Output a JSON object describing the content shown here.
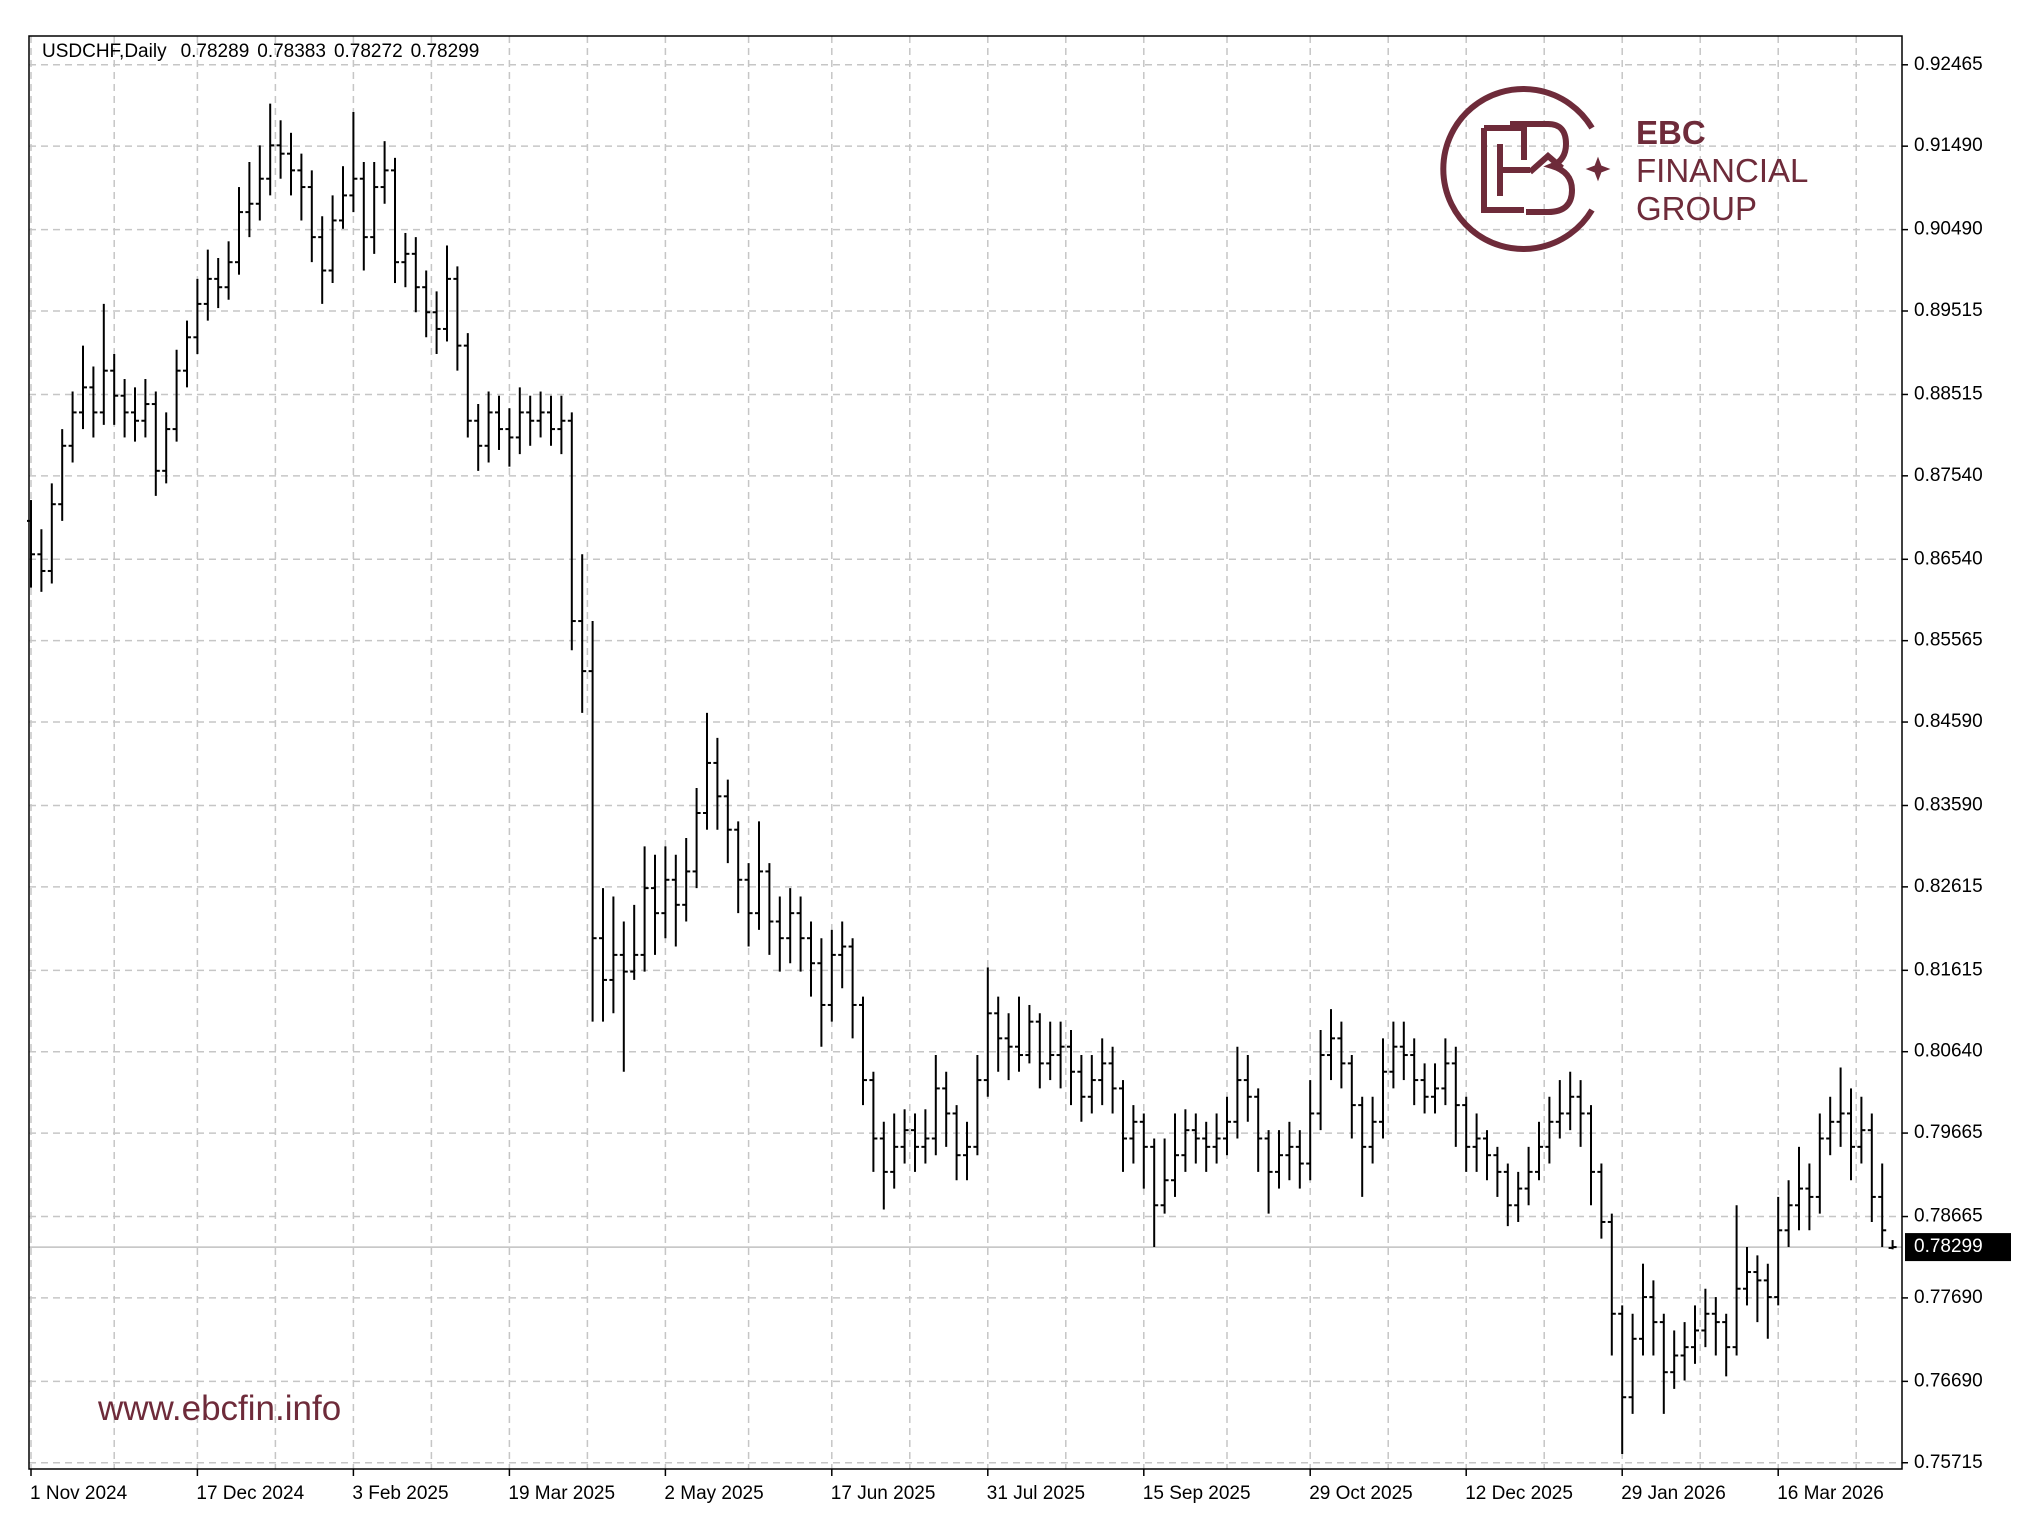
{
  "chart_data": {
    "type": "ohlc",
    "title": "USDCHF,Daily",
    "color": "#000000",
    "grid": true,
    "current_line_color": "#c0c0c0",
    "categories": [
      "1 Nov 2024",
      null,
      null,
      null,
      null,
      null,
      null,
      null,
      null,
      null,
      null,
      null,
      null,
      null,
      null,
      null,
      "17 Dec 2024",
      null,
      null,
      null,
      null,
      null,
      null,
      null,
      null,
      null,
      null,
      null,
      null,
      null,
      null,
      "3 Feb 2025",
      null,
      null,
      null,
      null,
      null,
      null,
      null,
      null,
      null,
      null,
      null,
      null,
      null,
      null,
      "19 Mar 2025",
      null,
      null,
      null,
      null,
      null,
      null,
      null,
      null,
      null,
      null,
      null,
      null,
      null,
      null,
      "2 May 2025",
      null,
      null,
      null,
      null,
      null,
      null,
      null,
      null,
      null,
      null,
      null,
      null,
      null,
      null,
      null,
      "17 Jun 2025",
      null,
      null,
      null,
      null,
      null,
      null,
      null,
      null,
      null,
      null,
      null,
      null,
      null,
      null,
      "31 Jul 2025",
      null,
      null,
      null,
      null,
      null,
      null,
      null,
      null,
      null,
      null,
      null,
      null,
      null,
      null,
      "15 Sep 2025",
      null,
      null,
      null,
      null,
      null,
      null,
      null,
      null,
      null,
      null,
      null,
      null,
      null,
      null,
      null,
      "29 Oct 2025",
      null,
      null,
      null,
      null,
      null,
      null,
      null,
      null,
      null,
      null,
      null,
      null,
      null,
      null,
      "12 Dec 2025",
      null,
      null,
      null,
      null,
      null,
      null,
      null,
      null,
      null,
      null,
      null,
      null,
      null,
      null,
      "29 Jan 2026",
      null,
      null,
      null,
      null,
      null,
      null,
      null,
      null,
      null,
      null,
      null,
      null,
      null,
      null,
      "16 Mar 2026",
      null,
      null,
      null,
      null,
      null,
      null,
      null,
      null,
      null,
      null,
      null
    ],
    "open": [
      0.87,
      0.866,
      0.864,
      0.872,
      0.879,
      0.883,
      0.886,
      0.883,
      0.888,
      0.885,
      0.883,
      0.882,
      0.884,
      0.876,
      0.881,
      0.888,
      0.892,
      0.896,
      0.899,
      0.898,
      0.901,
      0.907,
      0.908,
      0.911,
      0.915,
      0.914,
      0.912,
      0.91,
      0.904,
      0.9,
      0.906,
      0.909,
      0.911,
      0.904,
      0.91,
      0.912,
      0.901,
      0.902,
      0.898,
      0.895,
      0.893,
      0.899,
      0.891,
      0.882,
      0.879,
      0.883,
      0.881,
      0.88,
      0.883,
      0.882,
      0.883,
      0.881,
      0.882,
      0.858,
      0.852,
      0.82,
      0.815,
      0.818,
      0.816,
      0.818,
      0.826,
      0.823,
      0.827,
      0.824,
      0.828,
      0.835,
      0.841,
      0.837,
      0.833,
      0.827,
      0.823,
      0.828,
      0.822,
      0.82,
      0.823,
      0.82,
      0.817,
      0.812,
      0.818,
      0.819,
      0.812,
      0.803,
      0.796,
      0.792,
      0.795,
      0.797,
      0.795,
      0.796,
      0.802,
      0.799,
      0.794,
      0.795,
      0.803,
      0.811,
      0.808,
      0.807,
      0.806,
      0.81,
      0.805,
      0.806,
      0.807,
      0.804,
      0.801,
      0.803,
      0.805,
      0.802,
      0.796,
      0.798,
      0.795,
      0.788,
      0.791,
      0.794,
      0.797,
      0.796,
      0.795,
      0.796,
      0.798,
      0.803,
      0.801,
      0.796,
      0.792,
      0.794,
      0.795,
      0.793,
      0.799,
      0.806,
      0.808,
      0.805,
      0.8,
      0.795,
      0.798,
      0.804,
      0.807,
      0.806,
      0.803,
      0.801,
      0.802,
      0.805,
      0.8,
      0.795,
      0.796,
      0.794,
      0.792,
      0.788,
      0.79,
      0.792,
      0.795,
      0.798,
      0.799,
      0.801,
      0.799,
      0.792,
      0.786,
      0.775,
      0.765,
      0.772,
      0.777,
      0.774,
      0.768,
      0.77,
      0.771,
      0.773,
      0.775,
      0.774,
      0.771,
      0.778,
      0.78,
      0.779,
      0.777,
      0.785,
      0.788,
      0.79,
      0.789,
      0.796,
      0.798,
      0.799,
      0.795,
      0.797,
      0.789,
      0.78289
    ],
    "high": [
      0.8725,
      0.869,
      0.8745,
      0.881,
      0.8855,
      0.891,
      0.8885,
      0.896,
      0.89,
      0.887,
      0.886,
      0.887,
      0.8855,
      0.883,
      0.8905,
      0.894,
      0.899,
      0.9025,
      0.9015,
      0.9035,
      0.91,
      0.913,
      0.915,
      0.92,
      0.918,
      0.9165,
      0.914,
      0.912,
      0.9065,
      0.909,
      0.9125,
      0.919,
      0.913,
      0.913,
      0.9155,
      0.9135,
      0.9045,
      0.904,
      0.9,
      0.8975,
      0.903,
      0.9005,
      0.8925,
      0.884,
      0.8855,
      0.885,
      0.8835,
      0.886,
      0.885,
      0.8855,
      0.885,
      0.885,
      0.883,
      0.866,
      0.858,
      0.826,
      0.825,
      0.822,
      0.824,
      0.831,
      0.83,
      0.831,
      0.83,
      0.832,
      0.838,
      0.847,
      0.844,
      0.839,
      0.834,
      0.829,
      0.834,
      0.829,
      0.825,
      0.826,
      0.825,
      0.822,
      0.82,
      0.821,
      0.822,
      0.82,
      0.813,
      0.804,
      0.798,
      0.799,
      0.7995,
      0.799,
      0.7995,
      0.806,
      0.804,
      0.8,
      0.798,
      0.806,
      0.8165,
      0.813,
      0.811,
      0.813,
      0.812,
      0.811,
      0.81,
      0.81,
      0.809,
      0.806,
      0.806,
      0.808,
      0.807,
      0.803,
      0.8,
      0.799,
      0.796,
      0.796,
      0.799,
      0.7995,
      0.799,
      0.798,
      0.799,
      0.801,
      0.807,
      0.806,
      0.802,
      0.797,
      0.797,
      0.798,
      0.797,
      0.803,
      0.809,
      0.8115,
      0.81,
      0.806,
      0.801,
      0.801,
      0.808,
      0.81,
      0.81,
      0.808,
      0.805,
      0.805,
      0.808,
      0.807,
      0.801,
      0.799,
      0.797,
      0.795,
      0.793,
      0.792,
      0.795,
      0.798,
      0.801,
      0.803,
      0.804,
      0.803,
      0.8,
      0.793,
      0.787,
      0.776,
      0.775,
      0.781,
      0.779,
      0.775,
      0.773,
      0.774,
      0.776,
      0.778,
      0.777,
      0.775,
      0.788,
      0.783,
      0.782,
      0.781,
      0.789,
      0.791,
      0.795,
      0.793,
      0.799,
      0.801,
      0.8045,
      0.802,
      0.801,
      0.799,
      0.793,
      0.78383
    ],
    "low": [
      0.862,
      0.8615,
      0.8625,
      0.87,
      0.877,
      0.881,
      0.88,
      0.8815,
      0.8815,
      0.88,
      0.8795,
      0.88,
      0.873,
      0.8745,
      0.8795,
      0.886,
      0.89,
      0.894,
      0.8955,
      0.8965,
      0.8995,
      0.904,
      0.906,
      0.909,
      0.911,
      0.909,
      0.906,
      0.901,
      0.896,
      0.8985,
      0.905,
      0.907,
      0.9,
      0.902,
      0.908,
      0.8985,
      0.898,
      0.895,
      0.892,
      0.89,
      0.8915,
      0.888,
      0.88,
      0.876,
      0.877,
      0.8785,
      0.8765,
      0.878,
      0.879,
      0.88,
      0.879,
      0.878,
      0.8545,
      0.847,
      0.81,
      0.81,
      0.811,
      0.804,
      0.815,
      0.816,
      0.818,
      0.82,
      0.819,
      0.822,
      0.826,
      0.833,
      0.833,
      0.829,
      0.823,
      0.819,
      0.821,
      0.818,
      0.816,
      0.817,
      0.816,
      0.813,
      0.807,
      0.81,
      0.814,
      0.808,
      0.8,
      0.792,
      0.7875,
      0.79,
      0.793,
      0.792,
      0.793,
      0.794,
      0.795,
      0.791,
      0.791,
      0.794,
      0.801,
      0.804,
      0.803,
      0.804,
      0.805,
      0.802,
      0.803,
      0.802,
      0.8,
      0.798,
      0.799,
      0.8,
      0.799,
      0.792,
      0.793,
      0.79,
      0.783,
      0.787,
      0.789,
      0.792,
      0.793,
      0.792,
      0.793,
      0.794,
      0.796,
      0.798,
      0.792,
      0.787,
      0.79,
      0.791,
      0.79,
      0.791,
      0.797,
      0.803,
      0.802,
      0.796,
      0.789,
      0.793,
      0.796,
      0.802,
      0.803,
      0.8,
      0.799,
      0.799,
      0.8,
      0.795,
      0.792,
      0.792,
      0.791,
      0.789,
      0.7855,
      0.786,
      0.788,
      0.791,
      0.793,
      0.796,
      0.797,
      0.795,
      0.788,
      0.784,
      0.77,
      0.7582,
      0.763,
      0.77,
      0.77,
      0.763,
      0.766,
      0.767,
      0.769,
      0.771,
      0.77,
      0.7675,
      0.77,
      0.776,
      0.774,
      0.772,
      0.776,
      0.783,
      0.785,
      0.785,
      0.787,
      0.794,
      0.795,
      0.791,
      0.793,
      0.786,
      0.783,
      0.78272
    ],
    "close": [
      0.866,
      0.864,
      0.872,
      0.879,
      0.883,
      0.886,
      0.883,
      0.888,
      0.885,
      0.883,
      0.882,
      0.884,
      0.876,
      0.881,
      0.888,
      0.892,
      0.896,
      0.899,
      0.898,
      0.901,
      0.907,
      0.908,
      0.911,
      0.915,
      0.914,
      0.912,
      0.91,
      0.904,
      0.9,
      0.906,
      0.909,
      0.911,
      0.904,
      0.91,
      0.912,
      0.901,
      0.902,
      0.898,
      0.895,
      0.893,
      0.899,
      0.891,
      0.882,
      0.879,
      0.883,
      0.881,
      0.88,
      0.883,
      0.882,
      0.883,
      0.881,
      0.882,
      0.858,
      0.852,
      0.82,
      0.815,
      0.818,
      0.816,
      0.818,
      0.826,
      0.823,
      0.827,
      0.824,
      0.828,
      0.835,
      0.841,
      0.837,
      0.833,
      0.827,
      0.823,
      0.828,
      0.822,
      0.82,
      0.823,
      0.82,
      0.817,
      0.812,
      0.818,
      0.819,
      0.812,
      0.803,
      0.796,
      0.792,
      0.795,
      0.797,
      0.795,
      0.796,
      0.802,
      0.799,
      0.794,
      0.795,
      0.803,
      0.811,
      0.808,
      0.807,
      0.806,
      0.81,
      0.805,
      0.806,
      0.807,
      0.804,
      0.801,
      0.803,
      0.805,
      0.802,
      0.796,
      0.798,
      0.795,
      0.788,
      0.791,
      0.794,
      0.797,
      0.796,
      0.795,
      0.796,
      0.798,
      0.803,
      0.801,
      0.796,
      0.792,
      0.794,
      0.795,
      0.793,
      0.799,
      0.806,
      0.808,
      0.805,
      0.8,
      0.795,
      0.798,
      0.804,
      0.807,
      0.806,
      0.803,
      0.801,
      0.802,
      0.805,
      0.8,
      0.795,
      0.796,
      0.794,
      0.792,
      0.788,
      0.79,
      0.792,
      0.795,
      0.798,
      0.799,
      0.801,
      0.799,
      0.792,
      0.786,
      0.775,
      0.765,
      0.772,
      0.777,
      0.774,
      0.768,
      0.77,
      0.771,
      0.773,
      0.775,
      0.774,
      0.771,
      0.778,
      0.78,
      0.779,
      0.777,
      0.785,
      0.788,
      0.79,
      0.789,
      0.796,
      0.798,
      0.799,
      0.795,
      0.797,
      0.789,
      0.785,
      0.78299
    ],
    "ylim": [
      0.7564,
      0.9281
    ],
    "yticks": [
      0.92465,
      {
        "value": 0.9149,
        "label": "0.91490"
      },
      {
        "value": 0.9049,
        "label": "0.90490"
      },
      0.89515,
      0.88515,
      {
        "value": 0.8754,
        "label": "0.87540"
      },
      {
        "value": 0.8654,
        "label": "0.86540"
      },
      0.85565,
      {
        "value": 0.8459,
        "label": "0.84590"
      },
      {
        "value": 0.8359,
        "label": "0.83590"
      },
      0.82615,
      0.81615,
      {
        "value": 0.8064,
        "label": "0.80640"
      },
      0.79665,
      0.78665,
      {
        "value": 0.7769,
        "label": "0.77690"
      },
      {
        "value": 0.7669,
        "label": "0.76690"
      },
      0.75715
    ]
  },
  "logo": {
    "brand": "EBC",
    "line2": "FINANCIAL",
    "line3": "GROUP",
    "url": "www.ebcfin.info"
  }
}
